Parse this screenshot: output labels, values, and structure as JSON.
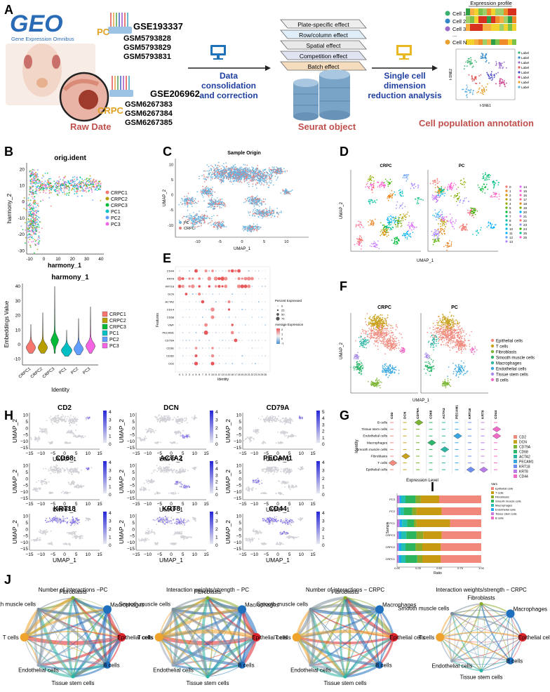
{
  "panel_letters": [
    "A",
    "B",
    "C",
    "D",
    "E",
    "F",
    "G",
    "H",
    "I",
    "J"
  ],
  "panel_a": {
    "geo_logo": "GEO",
    "geo_subtitle": "Gene Expression Omnibus",
    "pc_label": "PC",
    "crpc_label": "CRPC",
    "pc_series": "GSE193337",
    "pc_samples": [
      "GSM5793828",
      "GSM5793829",
      "GSM5793831"
    ],
    "crpc_series": "GSE206962",
    "crpc_samples": [
      "GSM6267383",
      "GSM6267384",
      "GSM6267385"
    ],
    "raw_data_label": "Raw Date",
    "step1_label": [
      "Data",
      "consolidation",
      "and correction"
    ],
    "effects": [
      "Plate-specific effect",
      "Row/column effect",
      "Spatial effect",
      "Competition effect",
      "Batch effect"
    ],
    "seurat_label": "Seurat object",
    "step2_label": [
      "Single cell",
      "dimension",
      "reduction analysis"
    ],
    "expression_profile_label": "Expression profile",
    "cells": [
      "Cell 1",
      "Cell 2",
      "Cell 3",
      "...",
      "Cell N"
    ],
    "annotation_label": "Cell population annotation",
    "tsne_legend": [
      "Label",
      "Label",
      "Label",
      "Label",
      "Label",
      "Label",
      "Label",
      "Label"
    ],
    "tsne_xlabel": "t-SNE1",
    "tsne_ylabel": "t-SNE2"
  },
  "panel_b": {
    "scatter_title": "orig.ident",
    "scatter_xlabel": "harmony_1",
    "scatter_ylabel": "harmony_2",
    "scatter_xticks": [
      "-10",
      "0",
      "10",
      "20",
      "30",
      "40"
    ],
    "scatter_yticks": [
      "20",
      "10",
      "0",
      "-10",
      "-20",
      "-30"
    ],
    "groups": [
      "CRPC1",
      "CRPC2",
      "CRPC3",
      "PC1",
      "PC2",
      "PC3"
    ],
    "group_colors": [
      "#f8766d",
      "#b79f00",
      "#00ba38",
      "#00bfc4",
      "#619cff",
      "#f564e3"
    ],
    "violin_title": "harmony_1",
    "violin_ylabel": "Embeddings Value",
    "violin_xlabel": "Identity",
    "violin_yticks": [
      "40",
      "30",
      "20",
      "10",
      "0",
      "-10"
    ]
  },
  "panel_c": {
    "title": "Sample Origin",
    "xlabel": "UMAP_1",
    "ylabel": "UMAP_2",
    "xticks": [
      "-10",
      "-5",
      "0",
      "5",
      "10"
    ],
    "yticks": [
      "10",
      "5",
      "0",
      "-5",
      "-10"
    ],
    "legend": [
      "PC",
      "CRPC"
    ],
    "colors": [
      "#6bb5e0",
      "#e07a76"
    ]
  },
  "panel_d": {
    "titles": [
      "CRPC",
      "PC"
    ],
    "xlabel": "UMAP_1",
    "ylabel": "UMAP_2",
    "legend": [
      "0",
      "1",
      "2",
      "3",
      "4",
      "5",
      "6",
      "7",
      "8",
      "9",
      "10",
      "11",
      "12",
      "13",
      "14",
      "15",
      "16",
      "17",
      "18",
      "19",
      "20",
      "21",
      "22",
      "23",
      "24",
      "25",
      "26"
    ]
  },
  "panel_e": {
    "genes": [
      "CD44",
      "KRT8",
      "KRT18",
      "DCN",
      "ACTA2",
      "CD14",
      "CD68",
      "VWF",
      "PECAM1",
      "CD79A",
      "CD3E",
      "CD3D",
      "CD2"
    ],
    "ylabel": "Features",
    "xlabel": "Identity",
    "legend_title1": "Percent Expressed",
    "legend_sizes": [
      "0",
      "25",
      "50",
      "75"
    ],
    "legend_title2": "Average Expression",
    "legend_scale": [
      "2",
      "1",
      "0",
      "-1"
    ]
  },
  "panel_f": {
    "titles": [
      "CRPC",
      "PC"
    ],
    "xlabel": "UMAP_1",
    "ylabel": "UMAP_2",
    "legend": [
      "Epithelial cells",
      "T cells",
      "Fibroblasts",
      "Smooth muscle cells",
      "Macrophages",
      "Endothelial cells",
      "Tissue stem cells",
      "B cells"
    ],
    "colors": [
      "#f08a7e",
      "#c8a21a",
      "#7bb533",
      "#2db66b",
      "#2bb5a3",
      "#39a6e0",
      "#a78ae6",
      "#f06bc7"
    ]
  },
  "panel_g": {
    "cell_types": [
      "B cells",
      "Tissue stem cells",
      "Endothelial cells",
      "Macrophages",
      "Smooth muscle cells",
      "Fibroblasts",
      "T cells",
      "Epithelial cells"
    ],
    "genes": [
      "CD2",
      "DCN",
      "CD79A",
      "CD68",
      "ACTA2",
      "PECAM1",
      "KRT18",
      "KRT8",
      "CD44"
    ],
    "ylabel": "Identity",
    "xlabel": "Expression Level"
  },
  "panel_h": {
    "genes": [
      "CD2",
      "DCN",
      "CD79A",
      "CD68",
      "ACTA2",
      "PECAM1",
      "KRT18",
      "KRT8",
      "CD44"
    ],
    "xlabel": "UMAP_1",
    "ylabel": "UMAP_2",
    "xticks": [
      "−15",
      "−10",
      "−5",
      "0",
      "5",
      "10",
      "15"
    ],
    "yticks": [
      "10",
      "5",
      "0",
      "−5",
      "−10",
      "−15"
    ],
    "scales": [
      [
        "4",
        "3",
        "2",
        "1",
        "0"
      ],
      [
        "4",
        "3",
        "2",
        "1",
        "0"
      ],
      [
        "5",
        "4",
        "3",
        "2",
        "1",
        "0"
      ],
      [
        "4",
        "3",
        "2",
        "1",
        "0"
      ],
      [
        "5",
        "4",
        "3",
        "2",
        "1",
        "0"
      ],
      [
        "4",
        "3",
        "2",
        "1",
        "0"
      ],
      [
        "4",
        "3",
        "2",
        "1",
        "0"
      ],
      [
        "4",
        "3",
        "2",
        "1",
        "0"
      ],
      [
        "4",
        "3",
        "2",
        "1",
        "0"
      ]
    ]
  },
  "panel_i": {
    "xlabel": "Ratio",
    "ylabel": "Sample",
    "legend_title": "Var1",
    "samples": [
      "PC3",
      "PC2",
      "PC1",
      "CRPC3",
      "CRPC2",
      "CRPC1"
    ],
    "xticks": [
      "0.00",
      "0.25",
      "0.50",
      "0.75",
      "1.00"
    ]
  },
  "chart_data": [
    {
      "type": "bar",
      "title": "",
      "xlabel": "Ratio",
      "ylabel": "Sample",
      "orientation": "horizontal-stacked",
      "categories": [
        "PC3",
        "PC2",
        "PC1",
        "CRPC3",
        "CRPC2",
        "CRPC1"
      ],
      "xlim": [
        0,
        1
      ],
      "series": [
        {
          "name": "Tissue stem cells",
          "values": [
            0.03,
            0.02,
            0.03,
            0.02,
            0.02,
            0.02
          ]
        },
        {
          "name": "Endothelial cells",
          "values": [
            0.02,
            0.02,
            0.03,
            0.03,
            0.03,
            0.03
          ]
        },
        {
          "name": "Macrophages",
          "values": [
            0.05,
            0.04,
            0.06,
            0.06,
            0.05,
            0.05
          ]
        },
        {
          "name": "Smooth muscle cells",
          "values": [
            0.12,
            0.1,
            0.08,
            0.12,
            0.12,
            0.14
          ]
        },
        {
          "name": "Fibroblasts",
          "values": [
            0.06,
            0.05,
            0.03,
            0.08,
            0.08,
            0.06
          ]
        },
        {
          "name": "T cells",
          "values": [
            0.22,
            0.3,
            0.4,
            0.22,
            0.22,
            0.22
          ]
        },
        {
          "name": "Epithelial cells",
          "values": [
            0.5,
            0.47,
            0.37,
            0.47,
            0.48,
            0.48
          ]
        }
      ],
      "series_colors": [
        "#c97be0",
        "#1aa9f0",
        "#22c0b0",
        "#2bb55f",
        "#8aab2a",
        "#c89a12",
        "#f2877c"
      ]
    },
    {
      "type": "other",
      "title": "Number of interactions −PC / Interaction weights/strength − PC / Number of interactions − CRPC / Interaction weights/strength − CRPC",
      "nodes": [
        "Fibroblasts",
        "Macrophages",
        "Epithelial cells",
        "B cells",
        "Tissue stem cells",
        "Endothelial cells",
        "T cells",
        "Smooth muscle cells"
      ]
    }
  ],
  "panel_j": {
    "titles": [
      "Number of interactions −PC",
      "Interaction weights/strength − PC",
      "Number of interactions − CRPC",
      "Interaction weights/strength − CRPC"
    ],
    "nodes": [
      "Fibroblasts",
      "Macrophages",
      "Epithelial cells",
      "B cells",
      "Tissue stem cells",
      "Endothelial cells",
      "T cells",
      "Smooth muscle cells"
    ],
    "node_colors": [
      "#8aab2a",
      "#1f6fbf",
      "#e0242c",
      "#1f6fbf",
      "#2bb5a3",
      "#9aa7b8",
      "#f0a32b",
      "#7d8f9a"
    ]
  }
}
